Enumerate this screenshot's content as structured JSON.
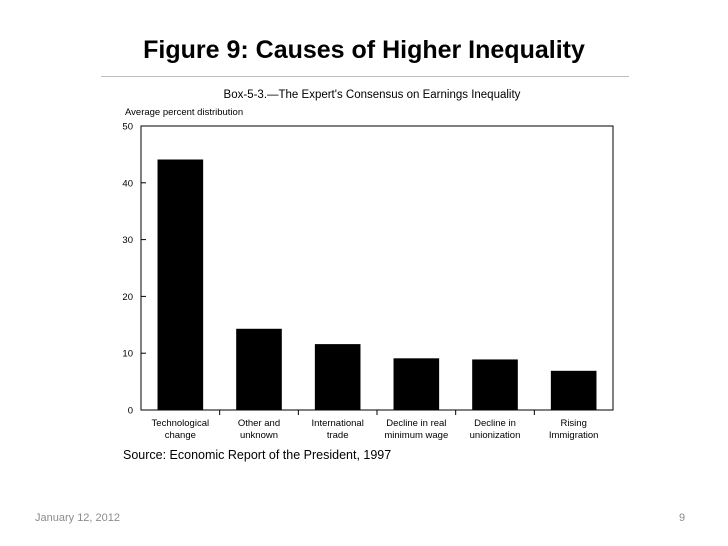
{
  "slide": {
    "title": "Figure 9: Causes of Higher Inequality",
    "footer_date": "January 12, 2012",
    "page_number": "9"
  },
  "chart_data": {
    "type": "bar",
    "title": "Box-5-3.—The Expert's Consensus on Earnings Inequality",
    "ylabel": "Average percent distribution",
    "xlabel": "",
    "ylim": [
      0,
      50
    ],
    "yticks": [
      0,
      10,
      20,
      30,
      40,
      50
    ],
    "categories": [
      [
        "Technological",
        "change"
      ],
      [
        "Other and",
        "unknown"
      ],
      [
        "International",
        "trade"
      ],
      [
        "Decline in real",
        "minimum wage"
      ],
      [
        "Decline in",
        "unionization"
      ],
      [
        "Rising",
        "Immigration"
      ]
    ],
    "values": [
      44.1,
      14.3,
      11.6,
      9.1,
      8.9,
      6.9
    ],
    "bar_color": "#000000",
    "grid": false,
    "source": "Source: Economic Report of the President, 1997"
  }
}
